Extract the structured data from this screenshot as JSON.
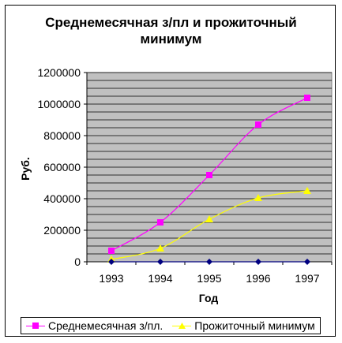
{
  "chart_data": {
    "type": "line",
    "title": [
      "Среднемесячная з/пл и прожиточный",
      "минимум"
    ],
    "xlabel": "Год",
    "ylabel": "Руб.",
    "categories": [
      "1993",
      "1994",
      "1995",
      "1996",
      "1997"
    ],
    "ylim": [
      0,
      1200000
    ],
    "yticks": [
      "0",
      "200000",
      "400000",
      "600000",
      "800000",
      "1000000",
      "1200000"
    ],
    "grid": true,
    "plot_background": "#c0c0c0",
    "legend_position": "bottom",
    "series": [
      {
        "name": "Среднемесячная з/пл.",
        "color": "#ff00ff",
        "marker": "square",
        "values": [
          70000,
          250000,
          550000,
          870000,
          1040000
        ]
      },
      {
        "name": "Прожиточный минимум",
        "color": "#ffff00",
        "marker": "triangle",
        "values": [
          15000,
          85000,
          270000,
          405000,
          450000
        ]
      },
      {
        "name": "",
        "color": "#000080",
        "marker": "diamond",
        "values": [
          0,
          0,
          0,
          0,
          0
        ]
      }
    ]
  }
}
